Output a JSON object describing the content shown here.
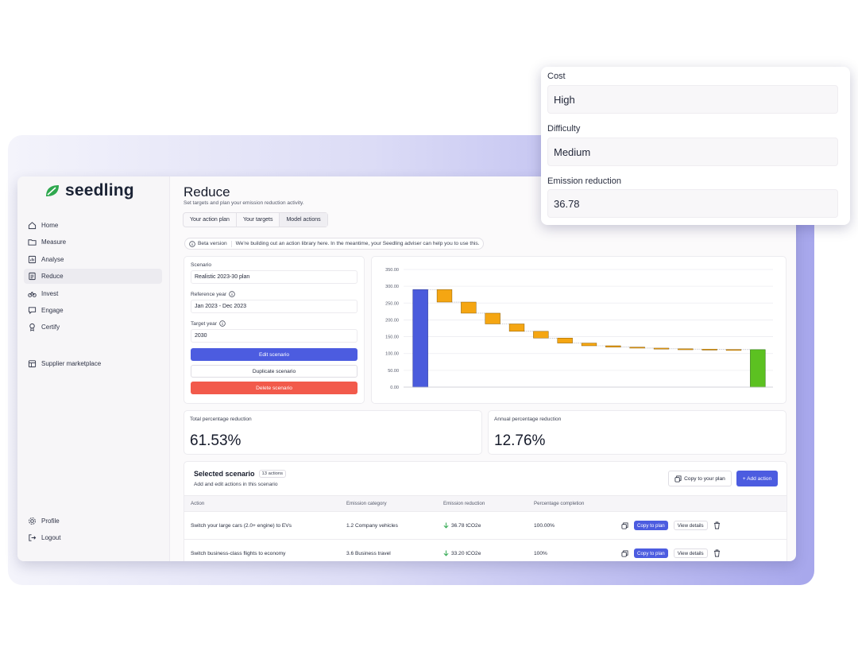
{
  "app": {
    "brand": "seedling",
    "nav": [
      {
        "label": "Home",
        "icon": "home-icon"
      },
      {
        "label": "Measure",
        "icon": "folder-icon"
      },
      {
        "label": "Analyse",
        "icon": "chart-icon"
      },
      {
        "label": "Reduce",
        "icon": "clipboard-icon",
        "active": true
      },
      {
        "label": "Invest",
        "icon": "bike-icon"
      },
      {
        "label": "Engage",
        "icon": "chat-icon"
      },
      {
        "label": "Certify",
        "icon": "badge-icon"
      }
    ],
    "nav_market": "Supplier marketplace",
    "nav_bottom": [
      "Profile",
      "Logout"
    ]
  },
  "page": {
    "title": "Reduce",
    "subtitle": "Set targets and plan your emission reduction activity.",
    "tabs": [
      "Your action plan",
      "Your targets",
      "Model actions"
    ],
    "beta_label": "Beta version",
    "beta_text": "We're building out an action library here. In the meantime, your Seedling adviser can help you to use this."
  },
  "scenario": {
    "scenario_label": "Scenario",
    "scenario_value": "Realistic 2023-30 plan",
    "reference_label": "Reference year",
    "reference_value": "Jan 2023 - Dec 2023",
    "target_label": "Target year",
    "target_value": "2030",
    "edit_label": "Edit scenario",
    "duplicate_label": "Duplicate scenario",
    "delete_label": "Delete scenario"
  },
  "chart_data": {
    "type": "bar",
    "subtype": "waterfall",
    "ylim": [
      0,
      350
    ],
    "y_ticks": [
      "350.00",
      "300.00",
      "250.00",
      "200.00",
      "150.00",
      "100.00",
      "50.00",
      "0.00"
    ],
    "start_value": 290,
    "steps": [
      {
        "from": 290,
        "to": 253
      },
      {
        "from": 253,
        "to": 220
      },
      {
        "from": 220,
        "to": 188
      },
      {
        "from": 188,
        "to": 166
      },
      {
        "from": 166,
        "to": 146
      },
      {
        "from": 146,
        "to": 131
      },
      {
        "from": 131,
        "to": 123
      },
      {
        "from": 123,
        "to": 119
      },
      {
        "from": 119,
        "to": 116
      },
      {
        "from": 116,
        "to": 114
      },
      {
        "from": 114,
        "to": 113
      },
      {
        "from": 113,
        "to": 112
      },
      {
        "from": 112,
        "to": 111.5
      }
    ],
    "end_value": 111.5,
    "colors": {
      "start": "#4a5bdc",
      "step": "#f5a612",
      "end": "#5cc121"
    },
    "grid": true
  },
  "stats": {
    "total_label": "Total percentage reduction",
    "total_value": "61.53%",
    "annual_label": "Annual percentage reduction",
    "annual_value": "12.76%"
  },
  "selected": {
    "title": "Selected scenario",
    "badge": "13 actions",
    "subtitle": "Add and edit actions in this scenario",
    "copy_label": "Copy to your plan",
    "add_label": "+ Add action",
    "columns": [
      "Action",
      "Emission category",
      "Emission reduction",
      "Percentage completion"
    ],
    "rows": [
      {
        "action": "Switch your large cars (2.0+ engine) to EVs",
        "category": "1.2 Company vehicles",
        "reduction": "36.78 tCO2e",
        "completion": "100.00%",
        "copy": "Copy to plan",
        "details": "View details"
      },
      {
        "action": "Switch business-class flights to economy",
        "category": "3.6 Business travel",
        "reduction": "33.20 tCO2e",
        "completion": "100%",
        "copy": "Copy to plan",
        "details": "View details"
      }
    ]
  },
  "overlay": {
    "cost_label": "Cost",
    "cost_value": "High",
    "difficulty_label": "Difficulty",
    "difficulty_value": "Medium",
    "reduction_label": "Emission reduction",
    "reduction_value": "36.78"
  },
  "colors": {
    "accent": "#4c5ce0",
    "danger": "#f25a4b",
    "brand": "#2fa84f"
  }
}
